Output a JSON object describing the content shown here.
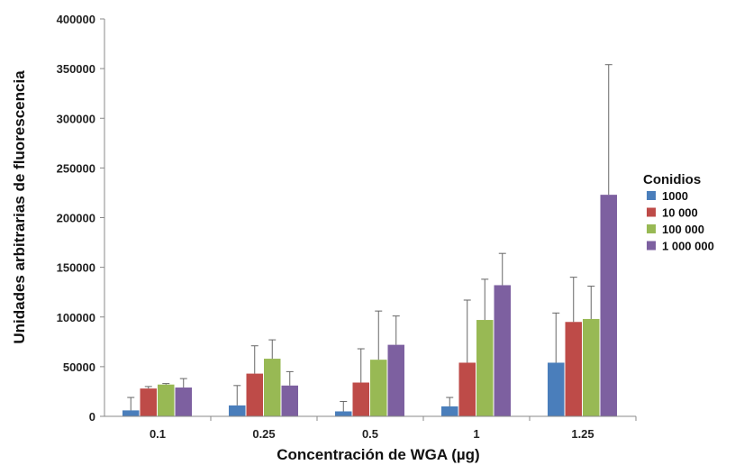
{
  "chart_data": {
    "type": "bar",
    "title": "",
    "xlabel": "Concentración de WGA (µg)",
    "ylabel": "Unidades arbitrarias de fluorescencia",
    "ylim": [
      0,
      400000
    ],
    "yticks": [
      "0",
      "50000",
      "100000",
      "150000",
      "200000",
      "250000",
      "300000",
      "350000",
      "400000"
    ],
    "categories": [
      "0.1",
      "0.25",
      "0.5",
      "1",
      "1.25"
    ],
    "legend_title": "Conidios",
    "legend_position": "right",
    "series": [
      {
        "name": "1000",
        "color": "#4a7ebb",
        "values": [
          6000,
          11000,
          5000,
          10000,
          54000
        ],
        "errors": [
          13000,
          20000,
          10000,
          9000,
          50000
        ]
      },
      {
        "name": "10 000",
        "color": "#be4b48",
        "values": [
          28000,
          43000,
          34000,
          54000,
          95000
        ],
        "errors": [
          2000,
          28000,
          34000,
          63000,
          45000
        ]
      },
      {
        "name": "100 000",
        "color": "#98b954",
        "values": [
          32000,
          58000,
          57000,
          97000,
          98000
        ],
        "errors": [
          1000,
          19000,
          49000,
          41000,
          33000
        ]
      },
      {
        "name": "1 000 000",
        "color": "#7d60a0",
        "values": [
          29000,
          31000,
          72000,
          132000,
          223000
        ],
        "errors": [
          9000,
          14000,
          29000,
          32000,
          131000
        ]
      }
    ],
    "error_bars": "positive"
  }
}
